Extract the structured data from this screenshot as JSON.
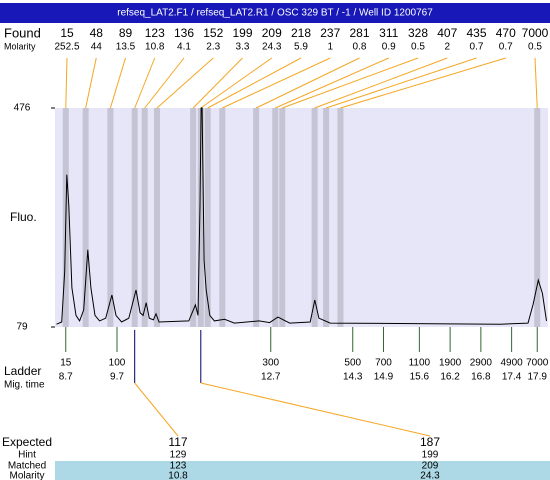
{
  "chart_data": {
    "type": "electropherogram",
    "title": "refseq_LAT2.F1 / refseq_LAT2.R1 / OSC 329 BT / -1 / Well ID 1200767",
    "found_label": "Found",
    "molarity_label": "Molarity",
    "found": [
      15,
      48,
      89,
      123,
      136,
      152,
      199,
      209,
      218,
      237,
      281,
      311,
      328,
      407,
      435,
      470,
      7000
    ],
    "molarity": [
      252.5,
      44,
      13.5,
      10.8,
      4.1,
      2.3,
      3.3,
      24.3,
      5.9,
      1,
      0.8,
      0.9,
      0.5,
      2,
      0.7,
      0.7,
      0.5
    ],
    "y_label": "Fluo.",
    "ylim": [
      79,
      476
    ],
    "yticks": [
      79,
      476
    ],
    "xlim": [
      8.49,
      18.11
    ],
    "trace": {
      "color": "#000000",
      "x": [
        8.52,
        8.62,
        8.68,
        8.72,
        8.76,
        8.82,
        8.9,
        8.97,
        9.05,
        9.13,
        9.19,
        9.27,
        9.36,
        9.48,
        9.6,
        9.68,
        9.79,
        9.93,
        10.07,
        10.15,
        10.21,
        10.27,
        10.33,
        10.41,
        10.46,
        10.52,
        11.1,
        11.23,
        11.28,
        11.32,
        11.34,
        11.36,
        11.4,
        11.44,
        11.51,
        11.6,
        11.8,
        11.99,
        12.47,
        12.68,
        12.84,
        13.07,
        13.47,
        13.56,
        13.64,
        13.86,
        17.18,
        17.72,
        17.82,
        17.92,
        18.0,
        18.08
      ],
      "values": [
        84,
        88,
        180,
        355,
        300,
        150,
        100,
        90,
        110,
        219,
        150,
        100,
        90,
        95,
        137,
        100,
        88,
        95,
        146,
        105,
        100,
        123,
        95,
        92,
        103,
        88,
        90,
        119,
        100,
        300,
        476,
        476,
        200,
        146,
        100,
        90,
        93,
        86,
        90,
        87,
        97,
        86,
        88,
        128,
        95,
        86,
        84,
        86,
        120,
        164,
        140,
        90
      ]
    },
    "ladder_label": "Ladder",
    "mig_time_label": "Mig. time",
    "ladder": [
      15,
      100,
      300,
      500,
      700,
      1100,
      1900,
      2900,
      4900,
      7000
    ],
    "mig_time": [
      8.7,
      9.7,
      12.7,
      14.3,
      14.9,
      15.6,
      16.2,
      16.8,
      17.4,
      17.9
    ],
    "expected_label": "Expected",
    "hint_label": "Hint",
    "matched_label": "Matched",
    "expected_molarity_label": "Molarity",
    "expected": [
      117,
      187
    ],
    "hint": [
      129,
      199
    ],
    "matched": [
      123,
      209
    ],
    "expected_molarity": [
      10.8,
      24.3
    ]
  }
}
